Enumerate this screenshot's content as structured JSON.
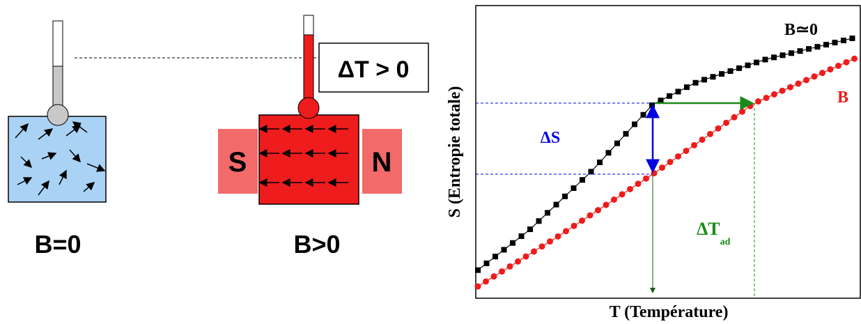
{
  "left_panel": {
    "delta_t_label": "ΔT > 0",
    "magnet_south": "S",
    "magnet_north": "N",
    "caption_zero_field": "B=0",
    "caption_field": "B>0"
  },
  "right_panel": {
    "y_axis_label": "S (Entropie totale)",
    "x_axis_label": "T (Température)",
    "curve_zero_field_label": "B≃0",
    "curve_field_label": "B",
    "delta_s_label": "ΔS",
    "delta_t_ad_label": {
      "main": "ΔT",
      "sub": "ad"
    }
  }
}
